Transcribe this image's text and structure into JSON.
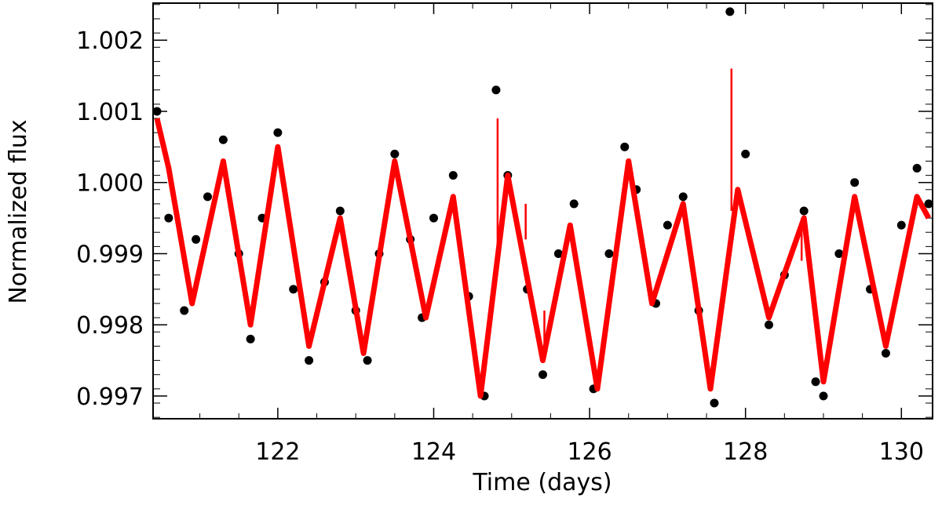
{
  "chart_data": {
    "type": "line",
    "title": "",
    "xlabel": "Time (days)",
    "ylabel": "Normalized flux",
    "xlim": [
      120.4,
      130.4
    ],
    "ylim": [
      0.99668,
      1.00252
    ],
    "x_ticks": [
      122,
      124,
      126,
      128,
      130
    ],
    "x_tick_labels": [
      "122",
      "124",
      "126",
      "128",
      "130"
    ],
    "y_ticks": [
      0.997,
      0.998,
      0.999,
      1.0,
      1.001,
      1.002
    ],
    "y_tick_labels": [
      "0.997",
      "0.998",
      "0.999",
      "1.000",
      "1.001",
      "1.002"
    ],
    "grid": false,
    "series": [
      {
        "style": "filled-circles",
        "color": "#000000",
        "x": [
          120.45,
          120.6,
          120.8,
          120.95,
          121.1,
          121.3,
          121.5,
          121.65,
          121.8,
          122.0,
          122.2,
          122.4,
          122.6,
          122.8,
          123.0,
          123.15,
          123.3,
          123.5,
          123.7,
          123.85,
          124.0,
          124.25,
          124.45,
          124.65,
          124.8,
          124.95,
          125.2,
          125.4,
          125.6,
          125.8,
          126.05,
          126.25,
          126.45,
          126.6,
          126.85,
          127.0,
          127.2,
          127.4,
          127.6,
          127.8,
          128.0,
          128.3,
          128.5,
          128.75,
          128.9,
          129.0,
          129.2,
          129.4,
          129.6,
          129.8,
          130.0,
          130.2,
          130.35
        ],
        "y": [
          1.001,
          0.9995,
          0.9982,
          0.9992,
          0.9998,
          1.0006,
          0.999,
          0.9978,
          0.9995,
          1.0007,
          0.9985,
          0.9975,
          0.9986,
          0.9996,
          0.9982,
          0.9975,
          0.999,
          1.0004,
          0.9992,
          0.9981,
          0.9995,
          1.0001,
          0.9984,
          0.997,
          1.0013,
          1.0001,
          0.9985,
          0.9973,
          0.999,
          0.9997,
          0.9971,
          0.999,
          1.0005,
          0.9999,
          0.9983,
          0.9994,
          0.9998,
          0.9982,
          0.9969,
          1.0024,
          1.0004,
          0.998,
          0.9987,
          0.9996,
          0.9972,
          0.997,
          0.999,
          1.0,
          0.9985,
          0.9976,
          0.9994,
          1.0002,
          0.9997
        ]
      },
      {
        "style": "line",
        "color": "#ff0000",
        "x": [
          120.45,
          120.6,
          120.9,
          121.3,
          121.65,
          122.0,
          122.4,
          122.8,
          123.1,
          123.5,
          123.9,
          124.25,
          124.6,
          124.95,
          125.4,
          125.75,
          126.1,
          126.5,
          126.8,
          127.2,
          127.55,
          127.9,
          128.3,
          128.75,
          129.0,
          129.4,
          129.8,
          130.2,
          130.35
        ],
        "y": [
          1.0009,
          1.0002,
          0.9983,
          1.0003,
          0.998,
          1.0005,
          0.9977,
          0.9995,
          0.9976,
          1.0003,
          0.9981,
          0.9998,
          0.997,
          1.0001,
          0.9975,
          0.9994,
          0.9971,
          1.0003,
          0.9983,
          0.9997,
          0.9971,
          0.9999,
          0.9981,
          0.9995,
          0.9972,
          0.9998,
          0.9977,
          0.9998,
          0.9995
        ]
      }
    ],
    "spikes": [
      {
        "x": 124.82,
        "y0": 0.999,
        "y1": 1.0009
      },
      {
        "x": 125.18,
        "y0": 0.9992,
        "y1": 0.9997
      },
      {
        "x": 125.42,
        "y0": 0.9975,
        "y1": 0.9982
      },
      {
        "x": 127.82,
        "y0": 0.9996,
        "y1": 1.0016
      },
      {
        "x": 128.72,
        "y0": 0.9989,
        "y1": 0.9995
      }
    ]
  }
}
